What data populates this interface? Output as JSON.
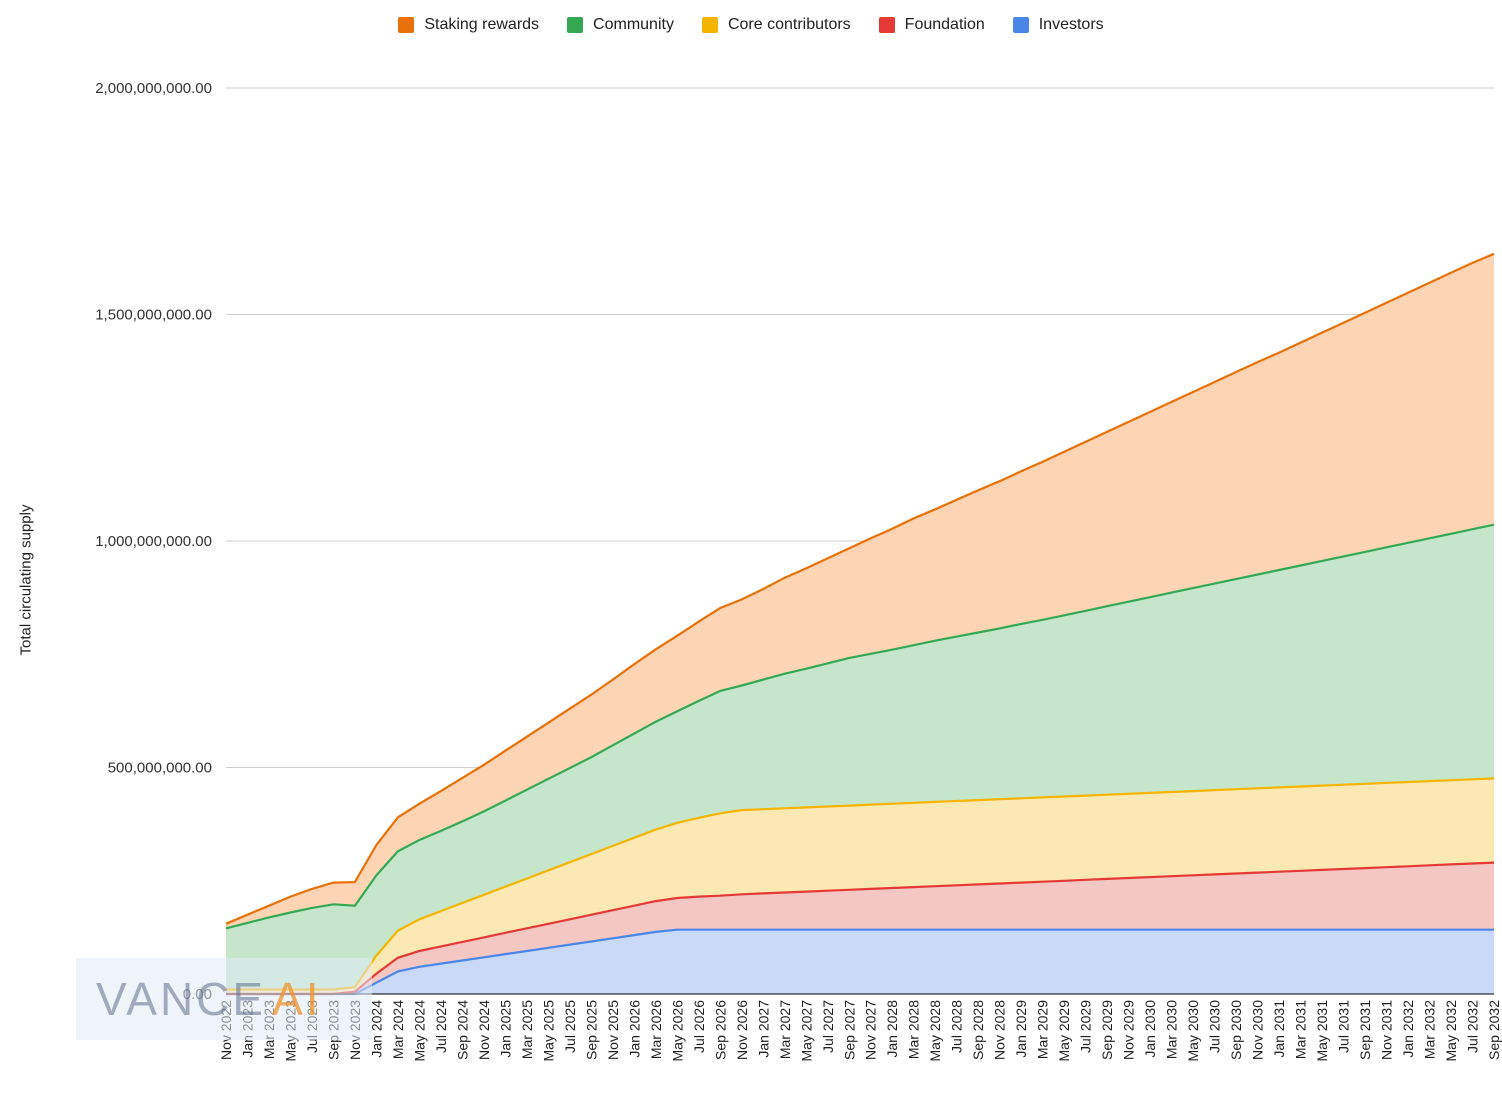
{
  "chart_data": {
    "type": "area",
    "stacked": true,
    "title": "",
    "xlabel": "",
    "ylabel": "Total circulating supply",
    "ylim": [
      0,
      2000000000
    ],
    "yticks": [
      0,
      500000000,
      1000000000,
      1500000000,
      2000000000
    ],
    "ytick_labels": [
      "0.00",
      "500,000,000.00",
      "1,000,000,000.00",
      "1,500,000,000.00",
      "2,000,000,000.00"
    ],
    "grid": true,
    "legend_position": "top-center",
    "categories": [
      "Nov 2022",
      "Jan 2023",
      "Mar 2023",
      "May 2023",
      "Jul 2023",
      "Sep 2023",
      "Nov 2023",
      "Jan 2024",
      "Mar 2024",
      "May 2024",
      "Jul 2024",
      "Sep 2024",
      "Nov 2024",
      "Jan 2025",
      "Mar 2025",
      "May 2025",
      "Jul 2025",
      "Sep 2025",
      "Nov 2025",
      "Jan 2026",
      "Mar 2026",
      "May 2026",
      "Jul 2026",
      "Sep 2026",
      "Nov 2026",
      "Jan 2027",
      "Mar 2027",
      "May 2027",
      "Jul 2027",
      "Sep 2027",
      "Nov 2027",
      "Jan 2028",
      "Mar 2028",
      "May 2028",
      "Jul 2028",
      "Sep 2028",
      "Nov 2028",
      "Jan 2029",
      "Mar 2029",
      "May 2029",
      "Jul 2029",
      "Sep 2029",
      "Nov 2029",
      "Jan 2030",
      "Mar 2030",
      "May 2030",
      "Jul 2030",
      "Sep 2030",
      "Nov 2030",
      "Jan 2031",
      "Mar 2031",
      "May 2031",
      "Jul 2031",
      "Sep 2031",
      "Nov 2031",
      "Jan 2032",
      "Mar 2032",
      "May 2032",
      "Jul 2032",
      "Sep 2032"
    ],
    "series": [
      {
        "name": "Investors",
        "color": "#4a86e8",
        "fill": "#c9daf8",
        "values": [
          0,
          0,
          0,
          0,
          0,
          0,
          0,
          25000000,
          50000000,
          60000000,
          67000000,
          74000000,
          81000000,
          88000000,
          95000000,
          102000000,
          109000000,
          116000000,
          123000000,
          130000000,
          137000000,
          142000000,
          142000000,
          142000000,
          142000000,
          142000000,
          142000000,
          142000000,
          142000000,
          142000000,
          142000000,
          142000000,
          142000000,
          142000000,
          142000000,
          142000000,
          142000000,
          142000000,
          142000000,
          142000000,
          142000000,
          142000000,
          142000000,
          142000000,
          142000000,
          142000000,
          142000000,
          142000000,
          142000000,
          142000000,
          142000000,
          142000000,
          142000000,
          142000000,
          142000000,
          142000000,
          142000000,
          142000000,
          142000000,
          142000000
        ]
      },
      {
        "name": "Foundation",
        "color": "#e53935",
        "fill": "#f4c7c3",
        "values": [
          0,
          0,
          0,
          0,
          0,
          0,
          5000000,
          20000000,
          30000000,
          35000000,
          38000000,
          41000000,
          44000000,
          47000000,
          50000000,
          53000000,
          56000000,
          59000000,
          62000000,
          65000000,
          68000000,
          70000000,
          73000000,
          75000000,
          78000000,
          80000000,
          82000000,
          84000000,
          86000000,
          88000000,
          90000000,
          92000000,
          94000000,
          96000000,
          98000000,
          100000000,
          102000000,
          104000000,
          106000000,
          108000000,
          110000000,
          112000000,
          114000000,
          116000000,
          118000000,
          120000000,
          122000000,
          124000000,
          126000000,
          128000000,
          130000000,
          132000000,
          134000000,
          136000000,
          138000000,
          140000000,
          142000000,
          144000000,
          146000000,
          148000000
        ]
      },
      {
        "name": "Core contributors",
        "color": "#f4b400",
        "fill": "#fce8b2",
        "values": [
          10000000,
          10000000,
          10000000,
          10000000,
          10000000,
          10000000,
          10000000,
          40000000,
          60000000,
          70000000,
          78000000,
          86000000,
          94000000,
          102000000,
          110000000,
          118000000,
          126000000,
          134000000,
          142000000,
          150000000,
          158000000,
          166000000,
          174000000,
          182000000,
          186000000,
          186000000,
          186000000,
          186000000,
          186000000,
          186000000,
          186000000,
          186000000,
          186000000,
          186000000,
          186000000,
          186000000,
          186000000,
          186000000,
          186000000,
          186000000,
          186000000,
          186000000,
          186000000,
          186000000,
          186000000,
          186000000,
          186000000,
          186000000,
          186000000,
          186000000,
          186000000,
          186000000,
          186000000,
          186000000,
          186000000,
          186000000,
          186000000,
          186000000,
          186000000,
          186000000
        ]
      },
      {
        "name": "Community",
        "color": "#34a853",
        "fill": "#c6e6cc",
        "values": [
          135000000,
          147000000,
          159000000,
          170000000,
          180000000,
          188000000,
          180000000,
          177000000,
          175000000,
          175000000,
          177000000,
          180000000,
          184000000,
          190000000,
          196000000,
          202000000,
          208000000,
          214000000,
          222000000,
          230000000,
          238000000,
          246000000,
          258000000,
          270000000,
          275000000,
          286000000,
          297000000,
          306000000,
          316000000,
          326000000,
          333000000,
          340000000,
          348000000,
          356000000,
          363000000,
          370000000,
          377000000,
          385000000,
          392000000,
          400000000,
          408000000,
          416000000,
          424000000,
          432000000,
          440000000,
          448000000,
          456000000,
          464000000,
          472000000,
          480000000,
          488000000,
          496000000,
          504000000,
          512000000,
          520000000,
          528000000,
          536000000,
          544000000,
          552000000,
          560000000
        ]
      },
      {
        "name": "Staking rewards",
        "color": "#e8710a",
        "fill": "#fdd4b4",
        "values": [
          10000000,
          18000000,
          26000000,
          35000000,
          42000000,
          48000000,
          52000000,
          67000000,
          75000000,
          80000000,
          88000000,
          96000000,
          103000000,
          110000000,
          117000000,
          124000000,
          131000000,
          138000000,
          145000000,
          153000000,
          160000000,
          167000000,
          175000000,
          183000000,
          190000000,
          200000000,
          212000000,
          222000000,
          232000000,
          242000000,
          255000000,
          267000000,
          280000000,
          290000000,
          302000000,
          314000000,
          325000000,
          337000000,
          349000000,
          361000000,
          373000000,
          385000000,
          397000000,
          409000000,
          421000000,
          433000000,
          445000000,
          457000000,
          469000000,
          480000000,
          492000000,
          504000000,
          516000000,
          528000000,
          540000000,
          552000000,
          564000000,
          576000000,
          588000000,
          598000000
        ]
      }
    ],
    "legend_order": [
      "Staking rewards",
      "Community",
      "Core contributors",
      "Foundation",
      "Investors"
    ]
  },
  "watermark": {
    "text_a": "VANCE",
    "text_b": "AI"
  }
}
